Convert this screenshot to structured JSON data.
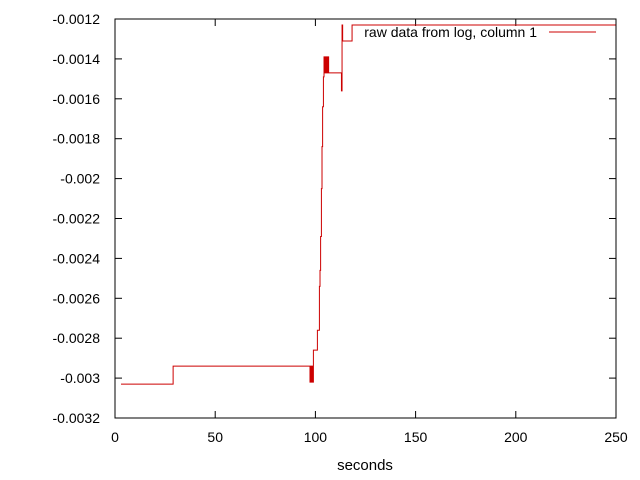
{
  "chart_data": {
    "type": "line",
    "title": "",
    "xlabel": "seconds",
    "ylabel": "",
    "xlim": [
      0,
      250
    ],
    "ylim": [
      -0.0032,
      -0.0012
    ],
    "x_ticks": [
      0,
      50,
      100,
      150,
      200,
      250
    ],
    "x_tick_labels": [
      "0",
      "50",
      "100",
      "150",
      "200",
      "250"
    ],
    "y_ticks": [
      -0.0032,
      -0.003,
      -0.0028,
      -0.0026,
      -0.0024,
      -0.0022,
      -0.002,
      -0.0018,
      -0.0016,
      -0.0014,
      -0.0012
    ],
    "y_tick_labels": [
      "-0.0032",
      "-0.003",
      "-0.0028",
      "-0.0026",
      "-0.0024",
      "-0.0022",
      "-0.002",
      "-0.0018",
      "-0.0016",
      "-0.0014",
      "-0.0012"
    ],
    "grid": false,
    "legend_position": "top-right",
    "series": [
      {
        "name": "raw data from log, column 1",
        "color": "#cc0000",
        "step": true,
        "x": [
          3,
          29,
          29,
          97,
          97.3,
          97.6,
          98,
          98.3,
          98.6,
          99,
          99.3,
          100,
          101,
          102,
          102.3,
          102.6,
          103,
          103.3,
          103.6,
          104,
          104.3,
          104.6,
          105,
          105.3,
          105.6,
          106,
          106.3,
          106.6,
          107,
          107.3,
          107.6,
          108,
          113,
          113.3,
          113.6,
          116,
          118,
          118.3,
          250
        ],
        "y": [
          -0.00303,
          -0.00303,
          -0.00294,
          -0.00294,
          -0.00302,
          -0.00294,
          -0.00302,
          -0.00294,
          -0.00302,
          -0.00286,
          -0.00286,
          -0.00286,
          -0.00276,
          -0.00254,
          -0.00246,
          -0.00229,
          -0.00205,
          -0.00184,
          -0.00164,
          -0.00149,
          -0.00139,
          -0.00147,
          -0.00139,
          -0.00147,
          -0.00139,
          -0.00147,
          -0.00139,
          -0.00147,
          -0.00147,
          -0.00147,
          -0.00147,
          -0.00147,
          -0.00156,
          -0.00123,
          -0.00131,
          -0.00131,
          -0.00131,
          -0.00123,
          -0.00123
        ]
      }
    ]
  }
}
